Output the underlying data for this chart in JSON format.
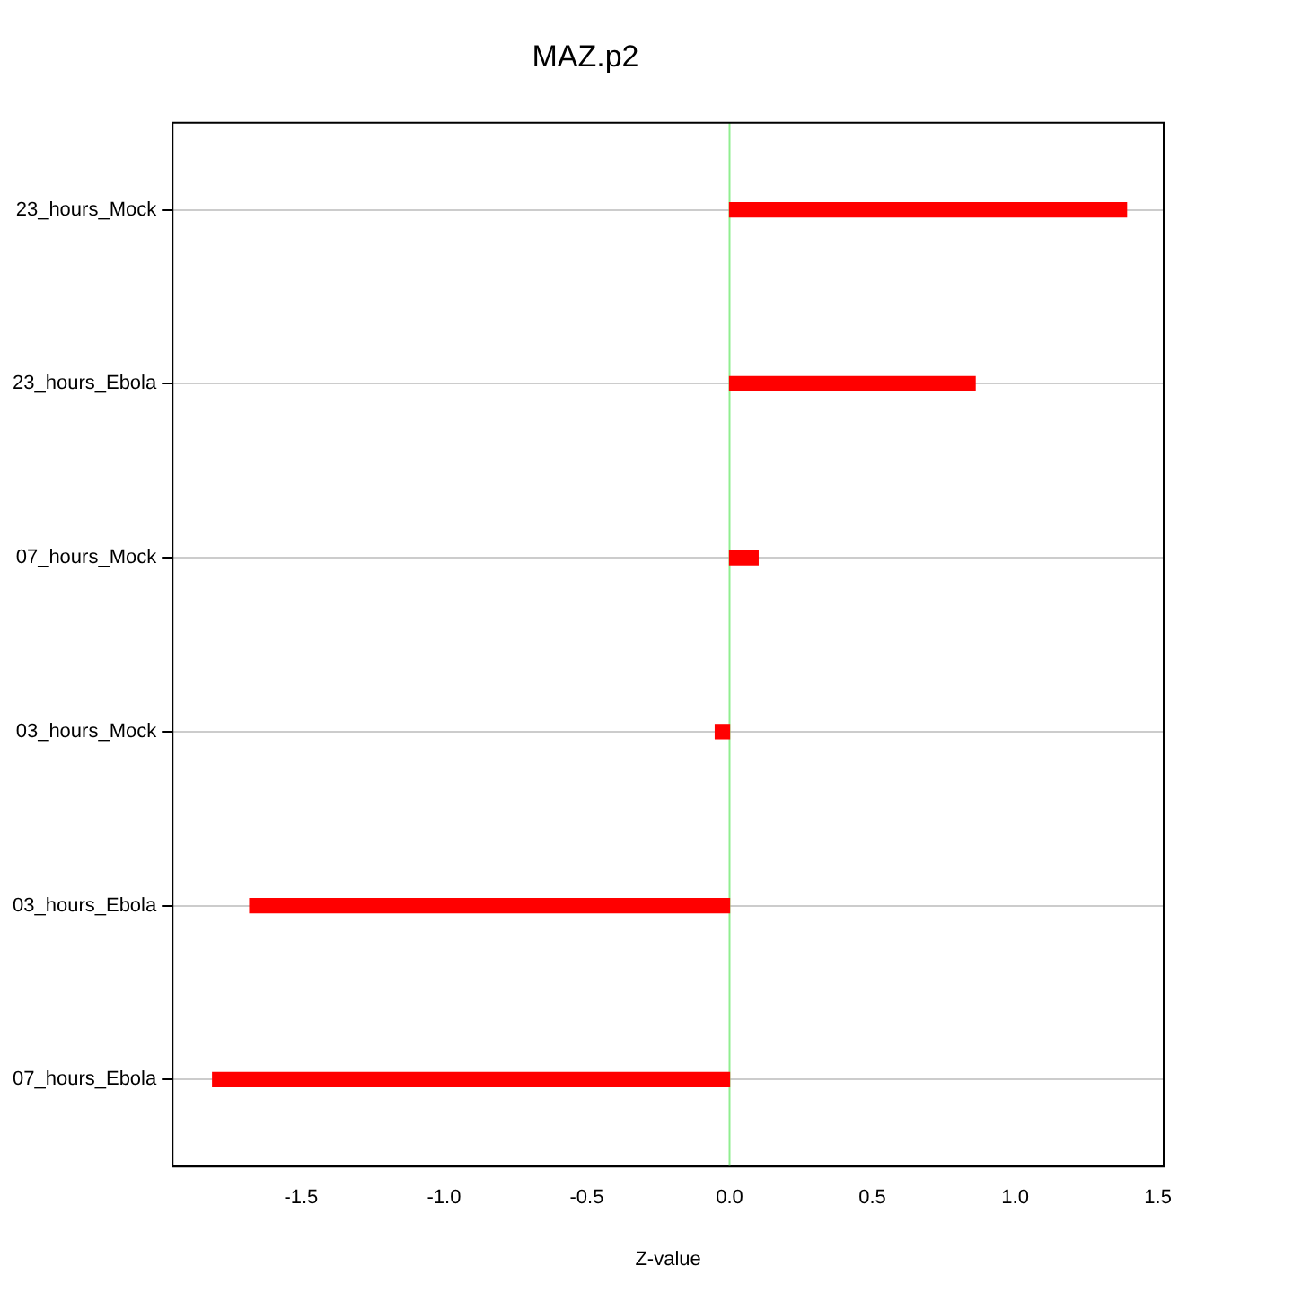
{
  "chart_data": {
    "type": "bar",
    "orientation": "horizontal",
    "title": "MAZ.p2",
    "xlabel": "Z-value",
    "categories": [
      "23_hours_Mock",
      "23_hours_Ebola",
      "07_hours_Mock",
      "03_hours_Mock",
      "03_hours_Ebola",
      "07_hours_Ebola"
    ],
    "values": [
      1.39,
      0.86,
      0.1,
      -0.05,
      -1.68,
      -1.81
    ],
    "color": "#ff0000",
    "xlim": [
      -1.95,
      1.52
    ],
    "xticks": [
      -1.5,
      {
        "value": -1,
        "label": "-1.0"
      },
      {
        "value": -0.5,
        "label": "-0.5"
      },
      {
        "value": 0,
        "label": "0.0"
      },
      0.5,
      {
        "value": 1,
        "label": "1.0"
      },
      1.5
    ],
    "grid": "y",
    "ref_lines": [
      {
        "axis": "x",
        "value": 0,
        "color": "#90ee90"
      }
    ]
  }
}
